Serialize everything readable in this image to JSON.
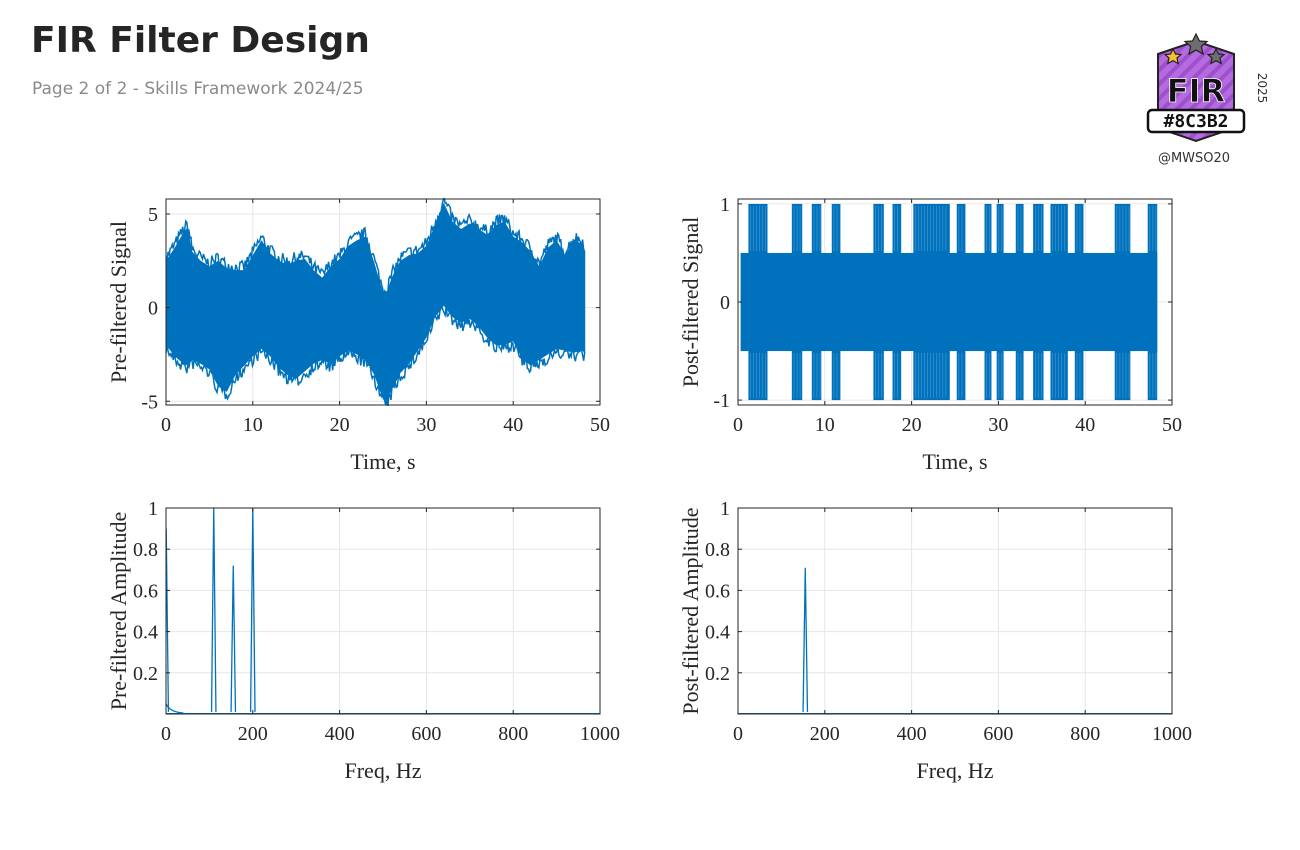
{
  "header": {
    "title": "FIR Filter Design",
    "subtitle": "Page 2 of 2 - Skills Framework 2024/25"
  },
  "badge": {
    "label": "FIR",
    "code": "#8C3B2",
    "year": "2025",
    "handle": "@MWSO20",
    "fill_color": "#b46be0",
    "star_color": "#f2c037"
  },
  "colors": {
    "signal": "#0072BD",
    "grid": "#e6e6e6",
    "axis": "#262626"
  },
  "chart_data": [
    {
      "type": "line",
      "ylabel": "Pre-filtered Signal",
      "xlabel": "Time, s",
      "xlim": [
        0,
        50
      ],
      "ylim": [
        -5.2,
        5.8
      ],
      "xticks": [
        0,
        10,
        20,
        30,
        40,
        50
      ],
      "yticks": [
        -5,
        0,
        5
      ],
      "xtick_labels": [
        "0",
        "10",
        "20",
        "30",
        "40",
        "50"
      ],
      "ytick_labels": [
        "-5",
        "0",
        "5"
      ],
      "grid": true,
      "series": [
        {
          "x": [
            0,
            1,
            2,
            2.5,
            3,
            4,
            5,
            6,
            7,
            8,
            9,
            10,
            11,
            12,
            13,
            14,
            15,
            16,
            17,
            18,
            19,
            20,
            21,
            22,
            23,
            24,
            25,
            25.5,
            26,
            27,
            28,
            29,
            30,
            31,
            32,
            33,
            34,
            35,
            36,
            37,
            38,
            39,
            40,
            41,
            42,
            43,
            44,
            45,
            46,
            47,
            48,
            48.3
          ],
          "upper": [
            2.5,
            3.2,
            4.0,
            4.3,
            3.0,
            2.5,
            2.2,
            2.5,
            2.1,
            2.0,
            2.0,
            2.8,
            3.6,
            2.9,
            2.5,
            2.3,
            2.5,
            2.6,
            2.0,
            1.6,
            2.2,
            2.6,
            3.3,
            3.6,
            3.8,
            2.4,
            0.8,
            0.9,
            1.6,
            2.5,
            2.8,
            2.9,
            3.3,
            4.4,
            5.6,
            4.6,
            4.2,
            4.5,
            4.2,
            3.9,
            4.4,
            4.6,
            3.8,
            3.5,
            3.0,
            2.2,
            3.2,
            3.6,
            2.8,
            3.6,
            3.4,
            3.0
          ],
          "lower": [
            -2.0,
            -2.6,
            -3.0,
            -3.1,
            -2.8,
            -3.0,
            -3.3,
            -4.2,
            -4.5,
            -3.6,
            -3.1,
            -2.6,
            -2.2,
            -2.6,
            -3.2,
            -3.6,
            -3.8,
            -3.4,
            -3.0,
            -2.8,
            -3.0,
            -2.6,
            -2.3,
            -2.5,
            -2.8,
            -3.6,
            -4.9,
            -5.0,
            -4.4,
            -3.5,
            -3.0,
            -2.3,
            -1.6,
            -0.5,
            0.1,
            -0.5,
            -0.8,
            -0.6,
            -1.0,
            -1.6,
            -2.0,
            -2.0,
            -1.8,
            -2.7,
            -3.1,
            -2.8,
            -2.5,
            -2.2,
            -2.3,
            -2.4,
            -2.3,
            -2.5
          ]
        }
      ]
    },
    {
      "type": "line",
      "ylabel": "Post-filtered Signal",
      "xlabel": "Time, s",
      "xlim": [
        0,
        50
      ],
      "ylim": [
        -1.05,
        1.05
      ],
      "xticks": [
        0,
        10,
        20,
        30,
        40,
        50
      ],
      "yticks": [
        -1,
        0,
        1
      ],
      "xtick_labels": [
        "0",
        "10",
        "20",
        "30",
        "40",
        "50"
      ],
      "ytick_labels": [
        "-1",
        "0",
        "1"
      ],
      "grid": true,
      "base_amplitude": 0.5,
      "burst_amplitude": 1.0,
      "bursts": [
        [
          1.2,
          3.4
        ],
        [
          6.2,
          7.4
        ],
        [
          8.5,
          9.6
        ],
        [
          10.8,
          11.8
        ],
        [
          15.6,
          16.8
        ],
        [
          17.8,
          18.8
        ],
        [
          20.2,
          24.4
        ],
        [
          25.2,
          26.2
        ],
        [
          28.4,
          29.2
        ],
        [
          29.8,
          30.6
        ],
        [
          32.0,
          32.9
        ],
        [
          34.0,
          35.2
        ],
        [
          36.0,
          38.0
        ],
        [
          38.8,
          39.8
        ],
        [
          43.4,
          45.2
        ],
        [
          47.2,
          48.3
        ]
      ],
      "x_end": 48.3
    },
    {
      "type": "line",
      "ylabel": "Pre-filtered Amplitude",
      "xlabel": "Freq, Hz",
      "xlim": [
        0,
        1000
      ],
      "ylim": [
        0,
        1
      ],
      "xticks": [
        0,
        200,
        400,
        600,
        800,
        1000
      ],
      "yticks": [
        0.2,
        0.4,
        0.6,
        0.8,
        1
      ],
      "xtick_labels": [
        "0",
        "200",
        "400",
        "600",
        "800",
        "1000"
      ],
      "ytick_labels": [
        "0.2",
        "0.4",
        "0.6",
        "0.8",
        "1"
      ],
      "grid": true,
      "peaks": [
        {
          "freq": 0.5,
          "amplitude": 0.9
        },
        {
          "freq": 110,
          "amplitude": 1.0
        },
        {
          "freq": 155,
          "amplitude": 0.72
        },
        {
          "freq": 200,
          "amplitude": 1.0
        }
      ]
    },
    {
      "type": "line",
      "ylabel": "Post-filtered Amplitude",
      "xlabel": "Freq, Hz",
      "xlim": [
        0,
        1000
      ],
      "ylim": [
        0,
        1
      ],
      "xticks": [
        0,
        200,
        400,
        600,
        800,
        1000
      ],
      "yticks": [
        0.2,
        0.4,
        0.6,
        0.8,
        1
      ],
      "xtick_labels": [
        "0",
        "200",
        "400",
        "600",
        "800",
        "1000"
      ],
      "ytick_labels": [
        "0.2",
        "0.4",
        "0.6",
        "0.8",
        "1"
      ],
      "grid": true,
      "peaks": [
        {
          "freq": 155,
          "amplitude": 0.71
        }
      ]
    }
  ]
}
